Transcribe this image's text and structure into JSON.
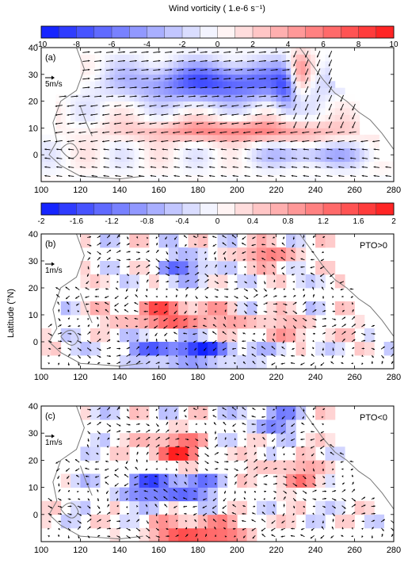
{
  "figure": {
    "colorbar_title": "Wind vorticity ( 1.e-6 s⁻¹)",
    "y_axis_label": "Latitude (°N)"
  },
  "chart_data": [
    {
      "type": "heatmap",
      "panel_label": "(a)",
      "annotation": "",
      "vector_ref_label": "5m/s",
      "xlim": [
        100,
        280
      ],
      "ylim": [
        -10,
        40
      ],
      "x_ticks": [
        "100",
        "120",
        "140",
        "160",
        "180",
        "200",
        "220",
        "240",
        "260",
        "280"
      ],
      "y_ticks": [
        "40",
        "30",
        "20",
        "10",
        "0"
      ],
      "colorbar_ticks": [
        "-10",
        "-8",
        "-6",
        "-4",
        "-2",
        "0",
        "2",
        "4",
        "6",
        "8",
        "10"
      ],
      "colorbar_range": [
        -10,
        10
      ],
      "colors": {
        "negative": "#0a1aff",
        "neutral": "#ffffff",
        "positive": "#ff1a1a"
      }
    },
    {
      "type": "heatmap",
      "panel_label": "(b)",
      "annotation": "PTO>0",
      "vector_ref_label": "1m/s",
      "xlim": [
        100,
        280
      ],
      "ylim": [
        -10,
        40
      ],
      "x_ticks": [
        "100",
        "120",
        "140",
        "160",
        "180",
        "200",
        "220",
        "240",
        "260",
        "280"
      ],
      "y_ticks": [
        "40",
        "30",
        "20",
        "10",
        "0"
      ],
      "colorbar_ticks": [
        "-2",
        "-1.6",
        "-1.2",
        "-0.8",
        "-0.4",
        "0",
        "0.4",
        "0.8",
        "1.2",
        "1.6",
        "2"
      ],
      "colorbar_range": [
        -2,
        2
      ],
      "colors": {
        "negative": "#0a1aff",
        "neutral": "#ffffff",
        "positive": "#ff1a1a"
      }
    },
    {
      "type": "heatmap",
      "panel_label": "(c)",
      "annotation": "PTO<0",
      "vector_ref_label": "1m/s",
      "xlim": [
        100,
        280
      ],
      "ylim": [
        -10,
        40
      ],
      "x_ticks": [
        "100",
        "120",
        "140",
        "160",
        "180",
        "200",
        "220",
        "240",
        "260",
        "280"
      ],
      "y_ticks": [
        "40",
        "30",
        "20",
        "10",
        "0"
      ],
      "colors": {
        "negative": "#0a1aff",
        "neutral": "#ffffff",
        "positive": "#ff1a1a"
      }
    }
  ]
}
